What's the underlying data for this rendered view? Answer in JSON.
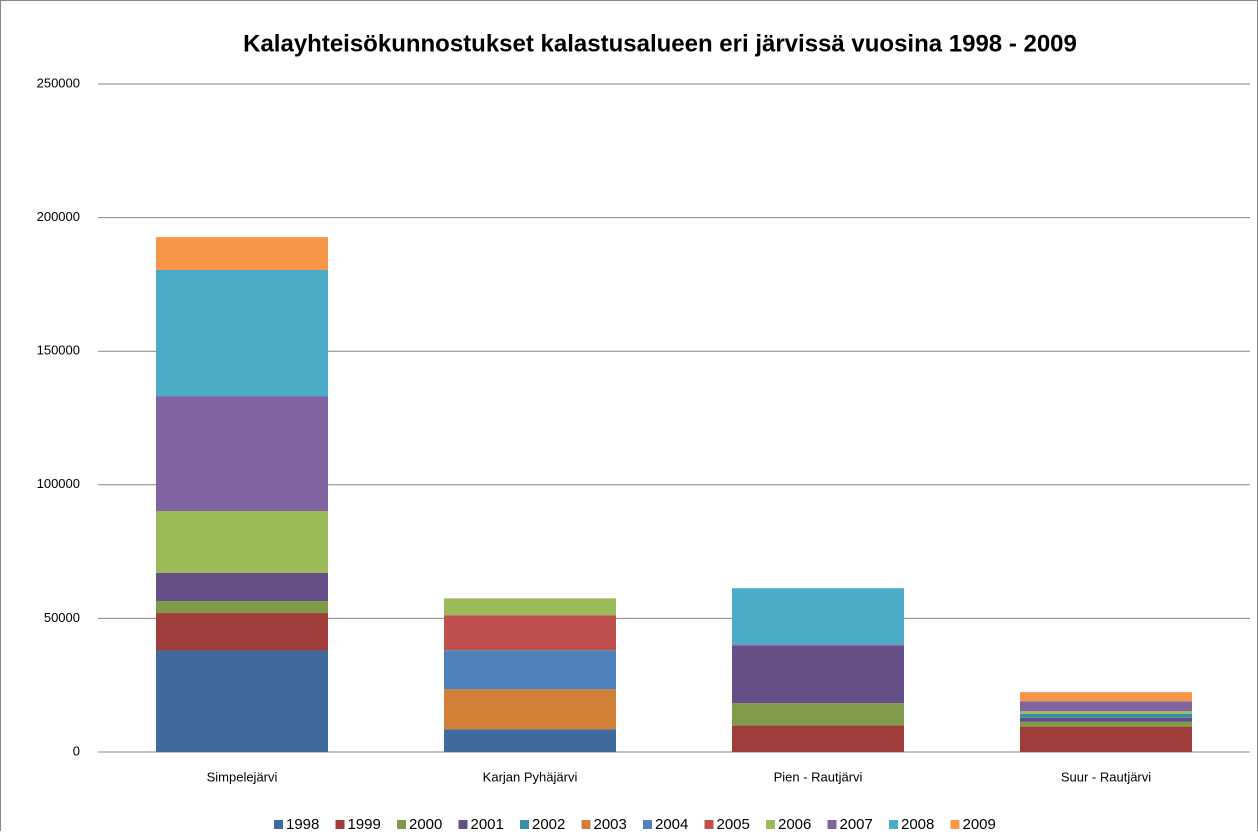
{
  "chart_data": {
    "type": "stacked_bar",
    "title": "Kalayhteisökunnostukset kalastusalueen eri järvissä vuosina 1998 - 2009",
    "categories": [
      "Simpelejärvi",
      "Karjan Pyhäjärvi",
      "Pien - Rautjärvi",
      "Suur - Rautjärvi"
    ],
    "series": [
      {
        "name": "1998",
        "color": "#3f6a9b",
        "values": [
          38000,
          8500,
          0,
          0
        ]
      },
      {
        "name": "1999",
        "color": "#9e3d3a",
        "values": [
          14000,
          0,
          10000,
          9500
        ]
      },
      {
        "name": "2000",
        "color": "#7f9a48",
        "values": [
          4500,
          0,
          8300,
          1800
        ]
      },
      {
        "name": "2001",
        "color": "#664f86",
        "values": [
          10500,
          0,
          21500,
          1500
        ]
      },
      {
        "name": "2002",
        "color": "#3c8da3",
        "values": [
          0,
          0,
          0,
          1500
        ]
      },
      {
        "name": "2003",
        "color": "#d07f36",
        "values": [
          0,
          15000,
          0,
          0
        ]
      },
      {
        "name": "2004",
        "color": "#4f81bd",
        "values": [
          0,
          14600,
          0,
          0
        ]
      },
      {
        "name": "2005",
        "color": "#c0504d",
        "values": [
          0,
          13100,
          0,
          0
        ]
      },
      {
        "name": "2006",
        "color": "#9bbb59",
        "values": [
          23200,
          6300,
          0,
          1000
        ]
      },
      {
        "name": "2007",
        "color": "#8064a2",
        "values": [
          43000,
          0,
          500,
          3700
        ]
      },
      {
        "name": "2008",
        "color": "#4bacc6",
        "values": [
          47200,
          0,
          21000,
          0
        ]
      },
      {
        "name": "2009",
        "color": "#f79646",
        "values": [
          12300,
          0,
          0,
          3400
        ]
      }
    ],
    "ylim": [
      0,
      250000
    ],
    "yticks": [
      0,
      50000,
      100000,
      150000,
      200000,
      250000
    ],
    "grid": true,
    "legend": "bottom"
  }
}
